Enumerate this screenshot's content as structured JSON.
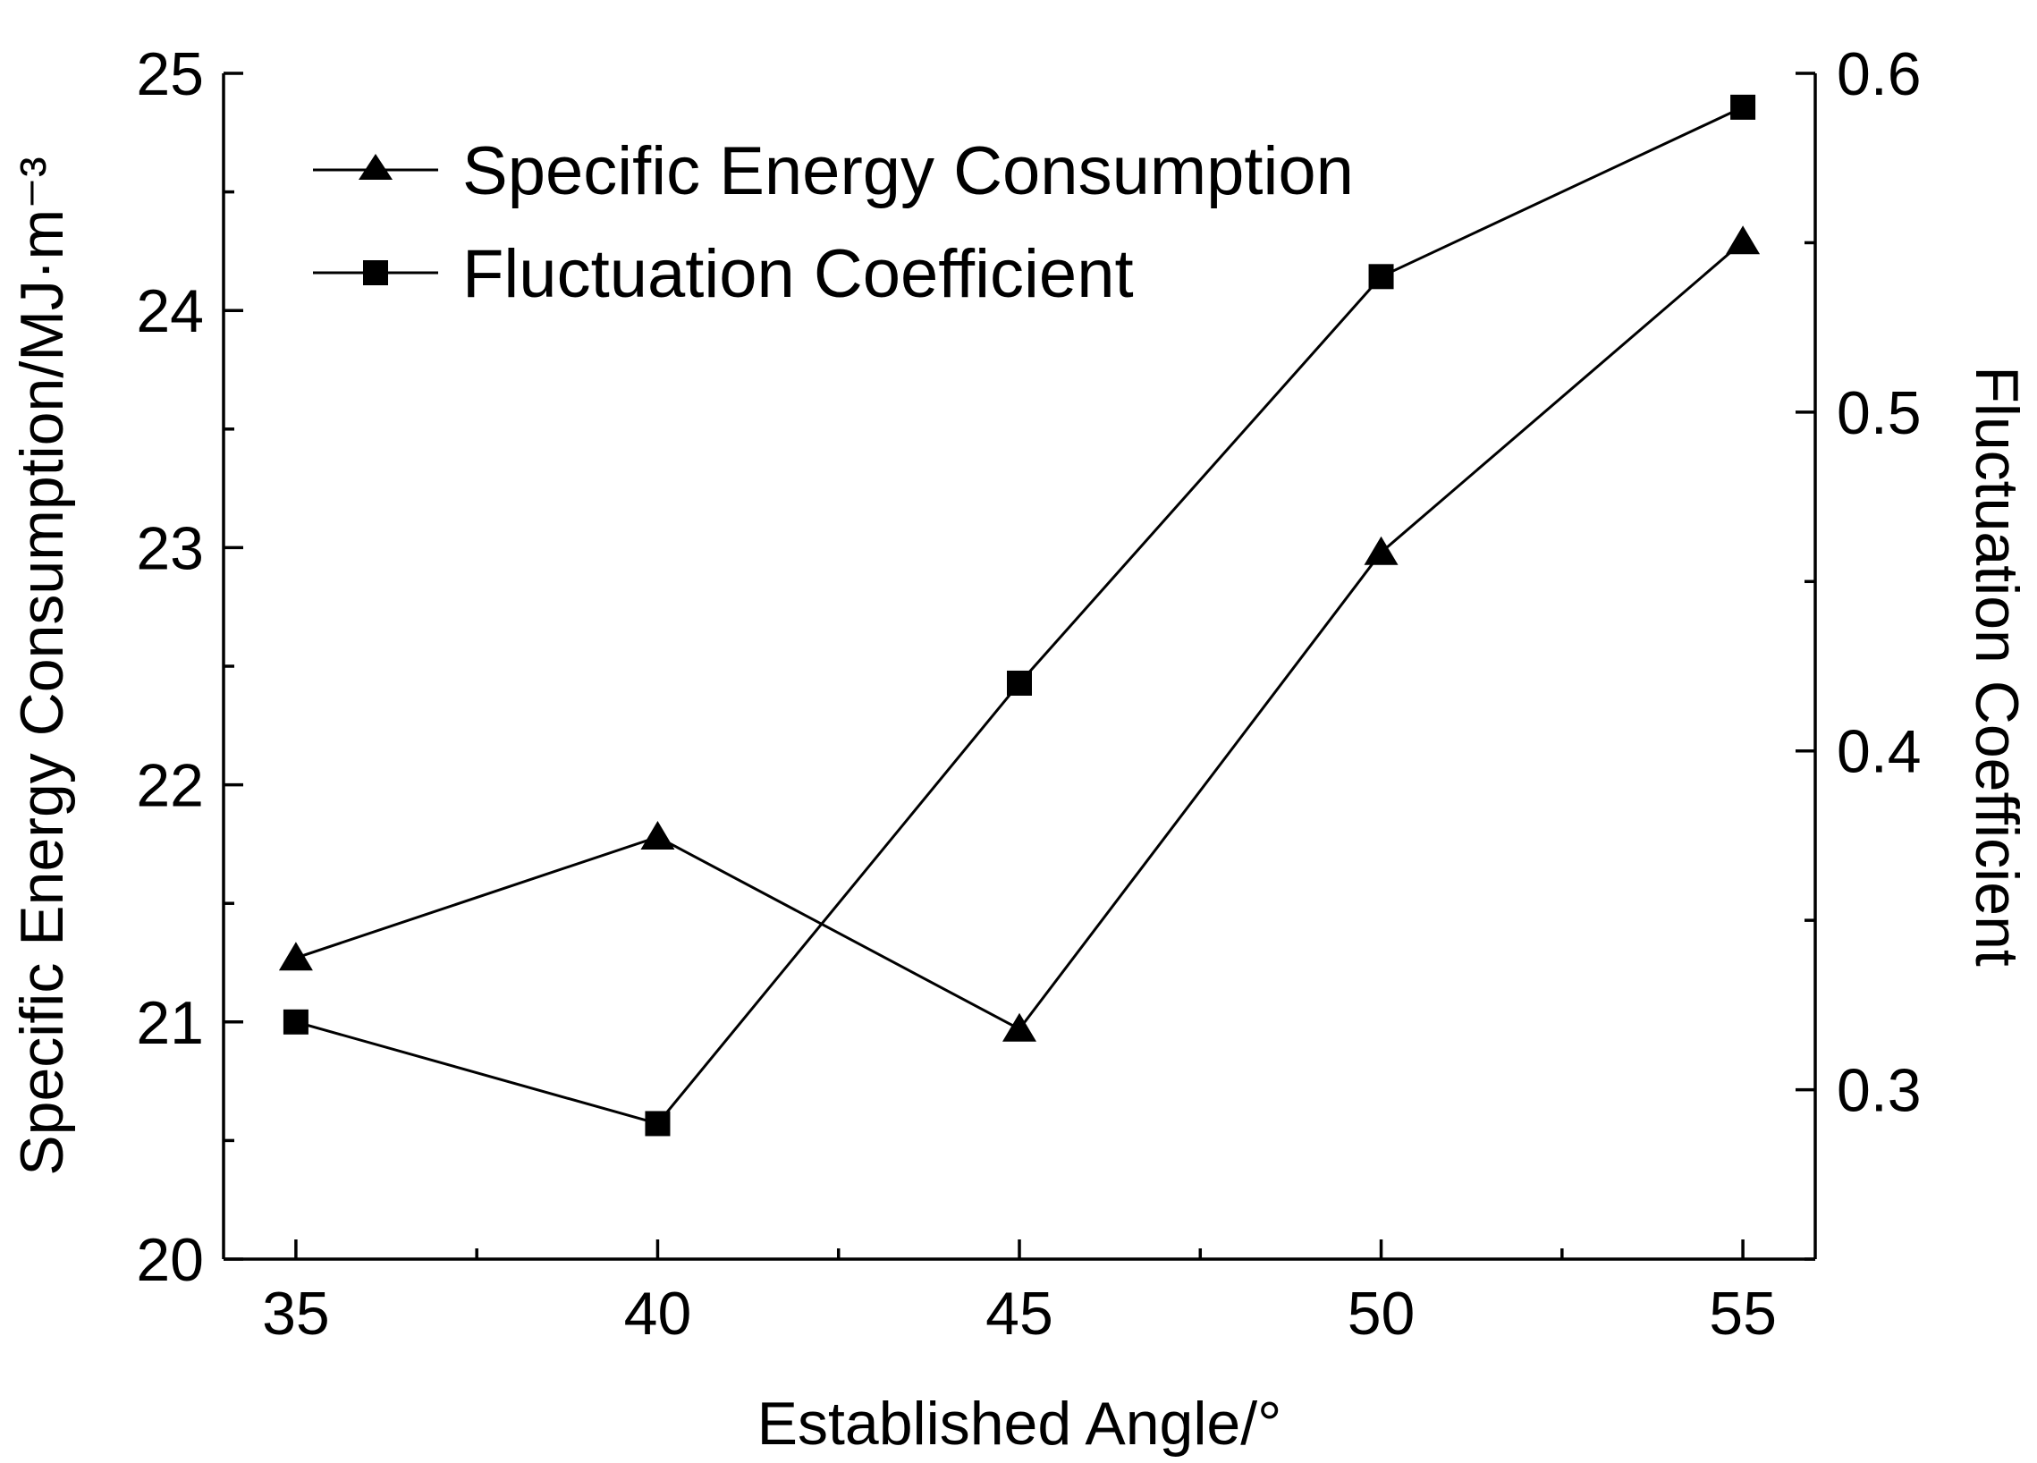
{
  "chart_data": {
    "type": "line",
    "x": [
      35,
      40,
      45,
      50,
      55
    ],
    "xlabel": "Established Angle/°",
    "ylabel_left": "Specific Energy Consumption/MJ·m⁻³",
    "ylabel_right": "Fluctuation Coefficient",
    "xlim": [
      34,
      56
    ],
    "ylim_left": [
      20,
      25
    ],
    "ylim_right": [
      0.25,
      0.6
    ],
    "x_ticks": [
      "35",
      "40",
      "45",
      "50",
      "55"
    ],
    "y_left_ticks": [
      "20",
      "21",
      "22",
      "23",
      "24",
      "25"
    ],
    "y_right_ticks": [
      "0.3",
      "0.4",
      "0.5",
      "0.6"
    ],
    "series": [
      {
        "name": "Specific Energy Consumption",
        "axis": "left",
        "marker": "triangle",
        "values": [
          21.27,
          21.78,
          20.97,
          22.98,
          24.29
        ]
      },
      {
        "name": "Fluctuation Coefficient",
        "axis": "right",
        "marker": "square",
        "values": [
          0.32,
          0.29,
          0.42,
          0.54,
          0.59
        ]
      }
    ],
    "legend_position": "top-left",
    "grid": false
  }
}
